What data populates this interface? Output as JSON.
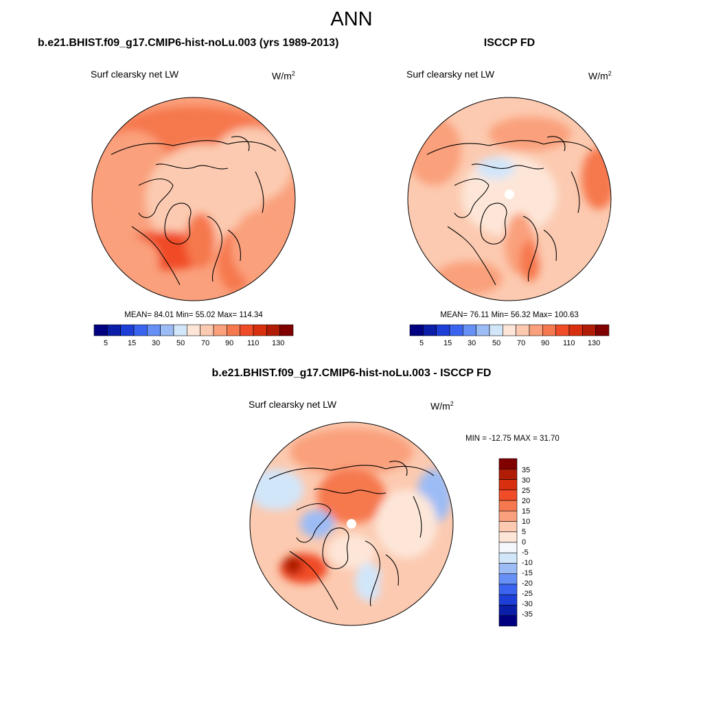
{
  "title": "ANN",
  "panels": [
    {
      "header": "b.e21.BHIST.f09_g17.CMIP6-hist-noLu.003 (yrs 1989-2013)",
      "variable": "Surf clearsky net LW",
      "units_base": "W/m",
      "units_exp": "2",
      "stats": "MEAN=  84.01  Min=  55.02  Max= 114.34",
      "colorbar_labels": [
        "5",
        "15",
        "30",
        "50",
        "70",
        "90",
        "110",
        "130"
      ]
    },
    {
      "header": "ISCCP FD",
      "variable": "Surf clearsky net LW",
      "units_base": "W/m",
      "units_exp": "2",
      "stats": "MEAN=  76.11  Min=  56.32  Max= 100.63",
      "colorbar_labels": [
        "5",
        "15",
        "30",
        "50",
        "70",
        "90",
        "110",
        "130"
      ]
    },
    {
      "header": "b.e21.BHIST.f09_g17.CMIP6-hist-noLu.003 - ISCCP FD",
      "variable": "Surf clearsky net LW",
      "units_base": "W/m",
      "units_exp": "2",
      "stats": "MIN = -12.75 MAX =  31.70",
      "colorbar_labels": [
        "35",
        "30",
        "25",
        "20",
        "15",
        "10",
        "5",
        "0",
        "-5",
        "-10",
        "-15",
        "-20",
        "-25",
        "-30",
        "-35"
      ]
    }
  ],
  "colors": {
    "abs_scale": [
      "#000080",
      "#0a1ea8",
      "#1e3ed8",
      "#3a64f0",
      "#6690f5",
      "#9cbcf5",
      "#d2e6fa",
      "#fde6d8",
      "#fccab0",
      "#faa07c",
      "#f6784e",
      "#f04c28",
      "#d8300e",
      "#b01c06",
      "#800000"
    ],
    "diff_scale": [
      "#800000",
      "#b01c06",
      "#d8300e",
      "#f04c28",
      "#f6784e",
      "#faa07c",
      "#fccab0",
      "#fde6d8",
      "#f4f8fc",
      "#d2e6fa",
      "#9cbcf5",
      "#6690f5",
      "#3a64f0",
      "#1e3ed8",
      "#0a1ea8",
      "#000080"
    ]
  }
}
